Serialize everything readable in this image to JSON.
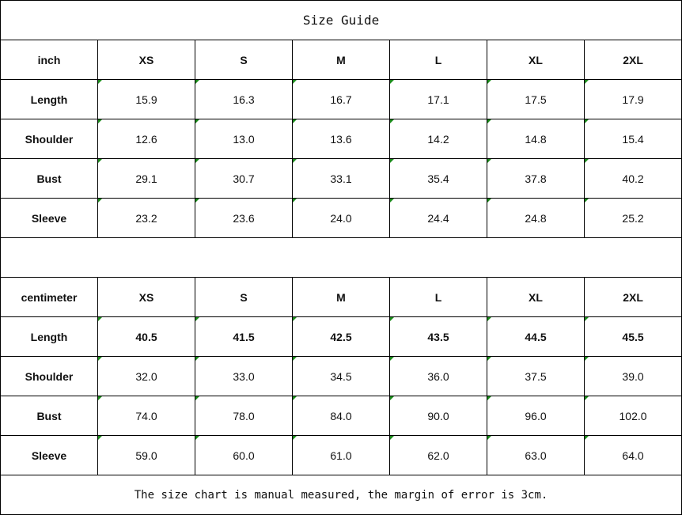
{
  "title": "Size Guide",
  "inch": {
    "unit": "inch",
    "sizes": [
      "XS",
      "S",
      "M",
      "L",
      "XL",
      "2XL"
    ],
    "rows": [
      {
        "label": "Length",
        "values": [
          "15.9",
          "16.3",
          "16.7",
          "17.1",
          "17.5",
          "17.9"
        ]
      },
      {
        "label": "Shoulder",
        "values": [
          "12.6",
          "13.0",
          "13.6",
          "14.2",
          "14.8",
          "15.4"
        ]
      },
      {
        "label": "Bust",
        "values": [
          "29.1",
          "30.7",
          "33.1",
          "35.4",
          "37.8",
          "40.2"
        ]
      },
      {
        "label": "Sleeve",
        "values": [
          "23.2",
          "23.6",
          "24.0",
          "24.4",
          "24.8",
          "25.2"
        ]
      }
    ]
  },
  "cm": {
    "unit": "centimeter",
    "sizes": [
      "XS",
      "S",
      "M",
      "L",
      "XL",
      "2XL"
    ],
    "rows": [
      {
        "label": "Length",
        "values": [
          "40.5",
          "41.5",
          "42.5",
          "43.5",
          "44.5",
          "45.5"
        ],
        "bold": true
      },
      {
        "label": "Shoulder",
        "values": [
          "32.0",
          "33.0",
          "34.5",
          "36.0",
          "37.5",
          "39.0"
        ]
      },
      {
        "label": "Bust",
        "values": [
          "74.0",
          "78.0",
          "84.0",
          "90.0",
          "96.0",
          "102.0"
        ]
      },
      {
        "label": "Sleeve",
        "values": [
          "59.0",
          "60.0",
          "61.0",
          "62.0",
          "63.0",
          "64.0"
        ]
      }
    ]
  },
  "note": "The size chart is manual measured, the margin of error is 3cm.",
  "colors": {
    "cell_marker": "#1a8a1a",
    "border": "#000000"
  }
}
